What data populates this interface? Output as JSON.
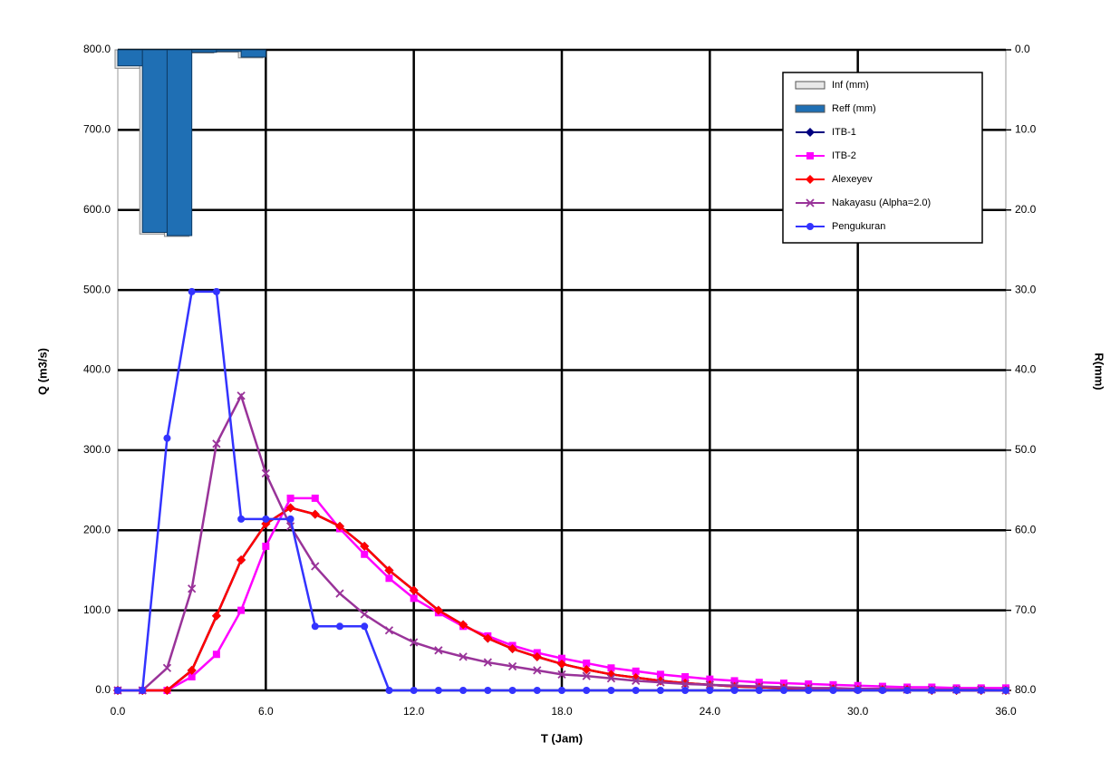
{
  "chart_data": {
    "type": "line",
    "x_label": "T (Jam)",
    "y_label": "Q (m3/s)",
    "y2_label": "R(mm)",
    "x": [
      0,
      1,
      2,
      3,
      4,
      5,
      6,
      7,
      8,
      9,
      10,
      11,
      12,
      13,
      14,
      15,
      16,
      17,
      18,
      19,
      20,
      21,
      22,
      23,
      24,
      25,
      26,
      27,
      28,
      29,
      30,
      31,
      32,
      33,
      34,
      35,
      36
    ],
    "xlim": [
      0,
      36
    ],
    "xticks": [
      {
        "value": 0,
        "label": "0.0"
      },
      {
        "value": 6,
        "label": "6.0"
      },
      {
        "value": 12,
        "label": "12.0"
      },
      {
        "value": 18,
        "label": "18.0"
      },
      {
        "value": 24,
        "label": "24.0"
      },
      {
        "value": 30,
        "label": "30.0"
      },
      {
        "value": 36,
        "label": "36.0"
      }
    ],
    "ylim": [
      0,
      800
    ],
    "yticks": [
      {
        "value": 0,
        "label": "0.0"
      },
      {
        "value": 100,
        "label": "100.0"
      },
      {
        "value": 200,
        "label": "200.0"
      },
      {
        "value": 300,
        "label": "300.0"
      },
      {
        "value": 400,
        "label": "400.0"
      },
      {
        "value": 500,
        "label": "500.0"
      },
      {
        "value": 600,
        "label": "600.0"
      },
      {
        "value": 700,
        "label": "700.0"
      },
      {
        "value": 800,
        "label": "800.0"
      }
    ],
    "y2lim": [
      80,
      0
    ],
    "y2ticks": [
      {
        "value": 0,
        "label": "0.0"
      },
      {
        "value": 10,
        "label": "10.0"
      },
      {
        "value": 20,
        "label": "20.0"
      },
      {
        "value": 30,
        "label": "30.0"
      },
      {
        "value": 40,
        "label": "40.0"
      },
      {
        "value": 50,
        "label": "50.0"
      },
      {
        "value": 60,
        "label": "60.0"
      },
      {
        "value": 70,
        "label": "70.0"
      },
      {
        "value": 80,
        "label": "80.0"
      }
    ],
    "grid": true,
    "legend": "top-right",
    "series": [
      {
        "name": "Inf (mm)",
        "type": "bar",
        "axis": "y2",
        "color": "#e8e8e8",
        "x": [
          0,
          1,
          2,
          3,
          4,
          5
        ],
        "values": [
          2.3,
          23.0,
          23.3,
          0.4,
          0.3,
          1.0
        ]
      },
      {
        "name": "Reff (mm)",
        "type": "bar",
        "axis": "y2",
        "color": "#1f6fb4",
        "x": [
          0,
          1,
          2,
          3,
          4,
          5
        ],
        "values": [
          2.0,
          22.8,
          23.2,
          0.3,
          0.2,
          0.9
        ]
      },
      {
        "name": "ITB-1",
        "marker": "diamond",
        "color": "#000080",
        "values": [
          0,
          0,
          0,
          25,
          93,
          163,
          208,
          228,
          220,
          205,
          180,
          150,
          125,
          100,
          82,
          65,
          52,
          42,
          33,
          26,
          20,
          16,
          12,
          9,
          7,
          5,
          4,
          3,
          2,
          2,
          1,
          1,
          1,
          0,
          0,
          0,
          0
        ]
      },
      {
        "name": "ITB-2",
        "marker": "square",
        "color": "#ff00ff",
        "values": [
          0,
          0,
          0,
          17,
          45,
          100,
          180,
          240,
          240,
          202,
          170,
          140,
          115,
          97,
          80,
          68,
          56,
          47,
          40,
          34,
          28,
          24,
          20,
          17,
          14,
          12,
          10,
          9,
          8,
          7,
          6,
          5,
          4,
          4,
          3,
          3,
          3
        ]
      },
      {
        "name": "Alexeyev",
        "marker": "diamond",
        "color": "#ff0000",
        "values": [
          0,
          0,
          0,
          25,
          93,
          163,
          208,
          228,
          220,
          205,
          180,
          150,
          125,
          100,
          82,
          65,
          52,
          42,
          33,
          26,
          20,
          16,
          12,
          9,
          7,
          5,
          4,
          3,
          2,
          2,
          1,
          1,
          1,
          0,
          0,
          0,
          0
        ]
      },
      {
        "name": "Nakayasu (Alpha=2.0)",
        "marker": "x",
        "color": "#993399",
        "values": [
          0,
          0,
          28,
          127,
          308,
          368,
          271,
          205,
          155,
          121,
          95,
          75,
          60,
          50,
          42,
          35,
          30,
          25,
          20,
          18,
          15,
          12,
          10,
          8,
          7,
          6,
          5,
          4,
          3,
          3,
          2,
          2,
          1,
          1,
          1,
          1,
          0
        ]
      },
      {
        "name": "Pengukuran",
        "marker": "circle",
        "color": "#3333ff",
        "values": [
          0,
          0,
          315,
          498,
          498,
          214,
          214,
          214,
          80,
          80,
          80,
          0,
          0,
          0,
          0,
          0,
          0,
          0,
          0,
          0,
          0,
          0,
          0,
          0,
          0,
          0,
          0,
          0,
          0,
          0,
          0,
          0,
          0,
          0,
          0,
          0,
          0
        ]
      }
    ]
  }
}
